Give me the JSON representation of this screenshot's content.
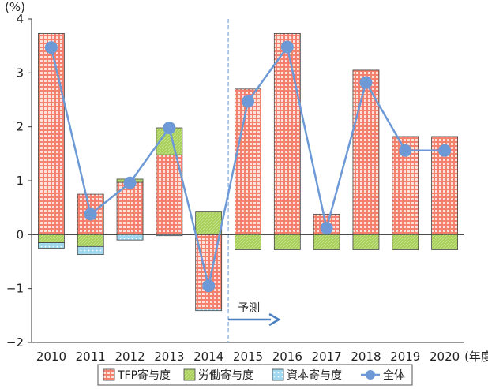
{
  "chart_data": {
    "type": "bar",
    "y_unit_label": "(%)",
    "x_unit_label": "(年度)",
    "categories": [
      "2010",
      "2011",
      "2012",
      "2013",
      "2014",
      "2015",
      "2016",
      "2017",
      "2018",
      "2019",
      "2020"
    ],
    "ylim": [
      -2,
      4
    ],
    "y_ticks": [
      "4",
      "3",
      "2",
      "1",
      "0",
      "−1",
      "−2"
    ],
    "y_tick_values": [
      4,
      3,
      2,
      1,
      0,
      -1,
      -2
    ],
    "grid": false,
    "legend_position": "bottom",
    "forecast_start_index": 5,
    "forecast_label": "予測",
    "series": [
      {
        "name": "TFP寄与度",
        "kind": "bar-stack",
        "color": "#f4816d",
        "values": [
          3.73,
          0.75,
          0.97,
          1.48,
          -1.38,
          2.7,
          3.73,
          0.38,
          3.05,
          1.82,
          1.82
        ]
      },
      {
        "name": "労働寄与度",
        "kind": "bar-stack",
        "color": "#a8d05a",
        "values": [
          -0.15,
          -0.22,
          0.06,
          0.5,
          0.42,
          -0.28,
          -0.28,
          -0.28,
          -0.28,
          -0.28,
          -0.28
        ]
      },
      {
        "name": "資本寄与度",
        "kind": "bar-stack",
        "color": "#9fd8ef",
        "values": [
          -0.1,
          -0.15,
          -0.1,
          -0.02,
          -0.03,
          0,
          0,
          0,
          0,
          0,
          0
        ]
      },
      {
        "name": "全体",
        "kind": "line",
        "color": "#6d9ad6",
        "values": [
          3.47,
          0.38,
          0.96,
          1.98,
          -0.95,
          2.47,
          3.48,
          0.12,
          2.82,
          1.56,
          1.56
        ]
      }
    ]
  }
}
